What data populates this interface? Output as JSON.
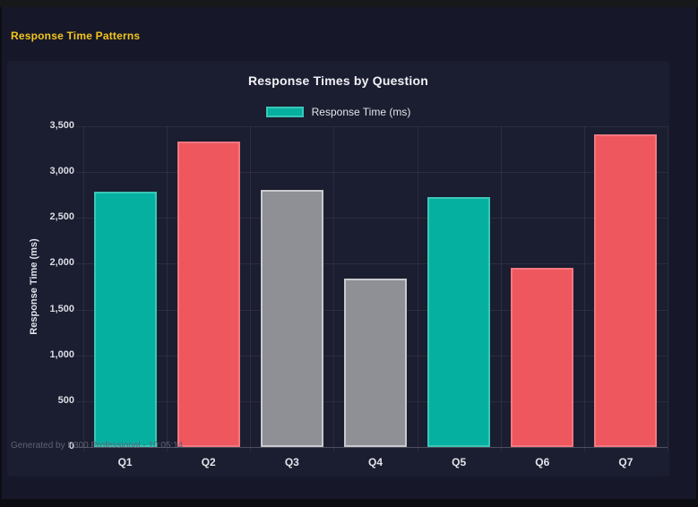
{
  "header": {
    "title": "Response Time Patterns"
  },
  "chart": {
    "title": "Response Times by Question",
    "legend": {
      "label": "Response Time (ms)",
      "swatch_fill": "#06b0a1",
      "swatch_border": "#39c7b7"
    }
  },
  "chart_data": {
    "type": "bar",
    "title": "Response Times by Question",
    "categories": [
      "Q1",
      "Q2",
      "Q3",
      "Q4",
      "Q5",
      "Q6",
      "Q7"
    ],
    "series": [
      {
        "name": "Response Time (ms)",
        "values": [
          2790,
          3330,
          2810,
          1840,
          2730,
          1960,
          3410
        ]
      }
    ],
    "bar_colors": [
      "#06b0a1",
      "#ee575e",
      "#8f9096",
      "#8f9096",
      "#06b0a1",
      "#ee575e",
      "#ee575e"
    ],
    "bar_border_colors": [
      "#39c7b7",
      "#f3787f",
      "#c9c9ce",
      "#c9c9ce",
      "#39c7b7",
      "#f3787f",
      "#f3787f"
    ],
    "xlabel": "",
    "ylabel": "Response Time (ms)",
    "ylim": [
      0,
      3500
    ],
    "yticks": [
      0,
      500,
      1000,
      1500,
      2000,
      2500,
      3000,
      3500
    ],
    "ytick_labels": [
      "0",
      "500",
      "1,000",
      "1,500",
      "2,000",
      "2,500",
      "3,000",
      "3,500"
    ],
    "grid": true,
    "legend_position": "top"
  },
  "footer": {
    "text": "Generated by P300 Professional - 10:05:14"
  },
  "colors": {
    "frame": "#0c0d13",
    "page_bg": "#161829",
    "panel_bg": "#1b1d30",
    "accent_yellow": "#f3c51d"
  }
}
